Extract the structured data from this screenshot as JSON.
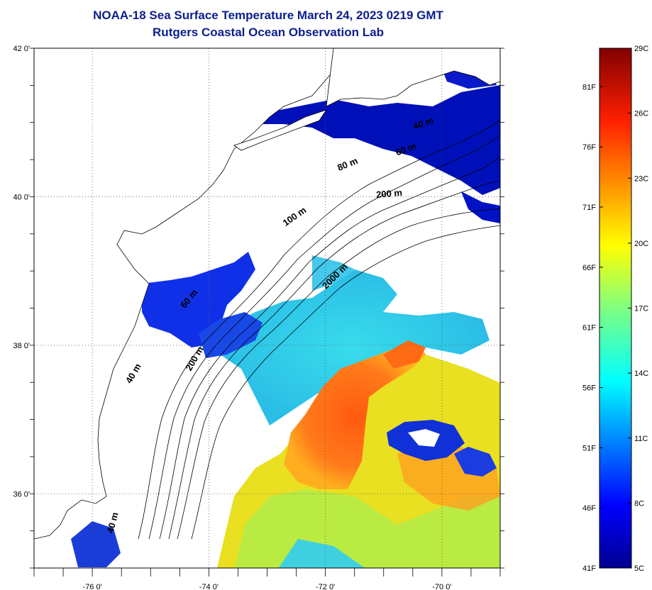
{
  "title": "NOAA-18 Sea Surface Temperature March 24, 2023 0219 GMT",
  "subtitle": "Rutgers Coastal Ocean Observation Lab",
  "map": {
    "lat_labels": [
      {
        "lat": 42,
        "label": "42 0'"
      },
      {
        "lat": 40,
        "label": "40 0'"
      },
      {
        "lat": 38,
        "label": "38 0'"
      },
      {
        "lat": 36,
        "label": "36 0'"
      }
    ],
    "lon_labels": [
      {
        "lon": -76,
        "label": "-76 0'"
      },
      {
        "lon": -74,
        "label": "-74 0'"
      },
      {
        "lon": -72,
        "label": "-72 0'"
      },
      {
        "lon": -70,
        "label": "-70 0'"
      }
    ],
    "extent": {
      "lon_min": -77,
      "lon_max": -69,
      "lat_min": 35,
      "lat_max": 42
    },
    "contour_labels": [
      {
        "text": "200 m",
        "lon": -70.9,
        "lat": 40.0,
        "angle": -5
      },
      {
        "text": "80 m",
        "lon": -71.6,
        "lat": 40.4,
        "angle": -22
      },
      {
        "text": "60 m",
        "lon": -70.6,
        "lat": 40.6,
        "angle": -20
      },
      {
        "text": "40 m",
        "lon": -70.3,
        "lat": 40.95,
        "angle": -20
      },
      {
        "text": "100 m",
        "lon": -72.5,
        "lat": 39.7,
        "angle": -35
      },
      {
        "text": "2000 m",
        "lon": -71.8,
        "lat": 38.9,
        "angle": -45
      },
      {
        "text": "60 m",
        "lon": -74.3,
        "lat": 38.6,
        "angle": -50
      },
      {
        "text": "200 m",
        "lon": -74.2,
        "lat": 37.8,
        "angle": -60
      },
      {
        "text": "40 m",
        "lon": -75.25,
        "lat": 37.6,
        "angle": -60
      },
      {
        "text": "40 m",
        "lon": -75.6,
        "lat": 35.6,
        "angle": -75
      }
    ]
  },
  "colorbar": {
    "celsius": [
      {
        "value": 29,
        "label": "29C"
      },
      {
        "value": 26,
        "label": "26C"
      },
      {
        "value": 23,
        "label": "23C"
      },
      {
        "value": 20,
        "label": "20C"
      },
      {
        "value": 17,
        "label": "17C"
      },
      {
        "value": 14,
        "label": "14C"
      },
      {
        "value": 11,
        "label": "11C"
      },
      {
        "value": 8,
        "label": "8C"
      },
      {
        "value": 5,
        "label": "5C"
      }
    ],
    "fahrenheit": [
      {
        "value": 81,
        "label": "81F"
      },
      {
        "value": 76,
        "label": "76F"
      },
      {
        "value": 71,
        "label": "71F"
      },
      {
        "value": 66,
        "label": "66F"
      },
      {
        "value": 61,
        "label": "61F"
      },
      {
        "value": 56,
        "label": "56F"
      },
      {
        "value": 51,
        "label": "51F"
      },
      {
        "value": 46,
        "label": "46F"
      },
      {
        "value": 41,
        "label": "41F"
      }
    ],
    "range_c": [
      5,
      29
    ]
  }
}
